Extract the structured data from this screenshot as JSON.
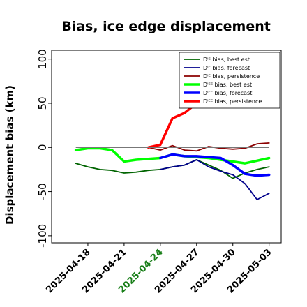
{
  "chart_data": {
    "type": "line",
    "title": "Bias, ice edge displacement",
    "xlabel": "",
    "ylabel": "Displacement bias (km)",
    "ylim": [
      -108,
      110
    ],
    "yticks": [
      -100,
      -50,
      0,
      50,
      100
    ],
    "xlim": [
      "2025-04-15",
      "2025-05-04"
    ],
    "xtick_labels": [
      {
        "label": "2025-04-18",
        "color": "#000000"
      },
      {
        "label": "2025-04-21",
        "color": "#000000"
      },
      {
        "label": "2025-04-24",
        "color": "#1a7f1a"
      },
      {
        "label": "2025-04-27",
        "color": "#000000"
      },
      {
        "label": "2025-04-30",
        "color": "#000000"
      },
      {
        "label": "2025-05-03",
        "color": "#000000"
      }
    ],
    "zero_line": true,
    "grid": false,
    "legend_position": "top-right",
    "series": [
      {
        "name": "Dᴵᴱ bias, best est.",
        "color": "#006400",
        "width": 1.8,
        "x": [
          "2025-04-17",
          "2025-04-18",
          "2025-04-19",
          "2025-04-20",
          "2025-04-21",
          "2025-04-22",
          "2025-04-23",
          "2025-04-24",
          "2025-04-25",
          "2025-04-26",
          "2025-04-27",
          "2025-04-28",
          "2025-04-29",
          "2025-04-30",
          "2025-05-01",
          "2025-05-02",
          "2025-05-03"
        ],
        "y": [
          -18,
          -22,
          -25,
          -26,
          -29,
          -28,
          -26,
          -25,
          -22,
          -20,
          -14,
          -20,
          -26,
          -35,
          -29,
          -25,
          -22
        ]
      },
      {
        "name": "Dᴵᴱ bias, forecast",
        "color": "#00008b",
        "width": 1.8,
        "x": [
          "2025-04-24",
          "2025-04-25",
          "2025-04-26",
          "2025-04-27",
          "2025-04-28",
          "2025-04-29",
          "2025-04-30",
          "2025-05-01",
          "2025-05-02",
          "2025-05-03"
        ],
        "y": [
          -25,
          -22,
          -20,
          -14,
          -22,
          -27,
          -31,
          -41,
          -59,
          -52
        ]
      },
      {
        "name": "Dᴵᴱ bias, persistence",
        "color": "#8b0000",
        "width": 1.8,
        "x": [
          "2025-04-23",
          "2025-04-24",
          "2025-04-25",
          "2025-04-26",
          "2025-04-27",
          "2025-04-28",
          "2025-04-29",
          "2025-04-30",
          "2025-05-01",
          "2025-05-02",
          "2025-05-03"
        ],
        "y": [
          0,
          -3,
          2,
          -3,
          -4,
          1,
          -1,
          -2,
          -1,
          4,
          5
        ]
      },
      {
        "name": "Dᴵᴱᴱ bias, best est.",
        "color": "#00ff00",
        "width": 3.5,
        "x": [
          "2025-04-17",
          "2025-04-18",
          "2025-04-19",
          "2025-04-20",
          "2025-04-21",
          "2025-04-22",
          "2025-04-23",
          "2025-04-24",
          "2025-04-25",
          "2025-04-26",
          "2025-04-27",
          "2025-04-28",
          "2025-04-29",
          "2025-04-30",
          "2025-05-01",
          "2025-05-02",
          "2025-05-03"
        ],
        "y": [
          -3,
          -1,
          -1,
          -3,
          -16,
          -14,
          -13,
          -12,
          -8,
          -10,
          -11,
          -12,
          -14,
          -16,
          -18,
          -15,
          -12
        ]
      },
      {
        "name": "Dᴵᴱᴱ bias, forecast",
        "color": "#0000ff",
        "width": 3.5,
        "x": [
          "2025-04-24",
          "2025-04-25",
          "2025-04-26",
          "2025-04-27",
          "2025-04-28",
          "2025-04-29",
          "2025-04-30",
          "2025-05-01",
          "2025-05-02",
          "2025-05-03"
        ],
        "y": [
          -12,
          -8,
          -10,
          -10,
          -11,
          -12,
          -20,
          -30,
          -32,
          -31
        ]
      },
      {
        "name": "Dᴵᴱᴱ bias, persistence",
        "color": "#ff0000",
        "width": 3.5,
        "x": [
          "2025-04-23",
          "2025-04-24",
          "2025-04-25",
          "2025-04-26",
          "2025-04-27",
          "2025-04-28",
          "2025-04-29",
          "2025-04-30",
          "2025-05-01",
          "2025-05-02",
          "2025-05-03"
        ],
        "y": [
          0,
          3,
          33,
          39,
          50,
          60,
          62,
          64,
          66,
          68,
          70
        ]
      }
    ]
  }
}
